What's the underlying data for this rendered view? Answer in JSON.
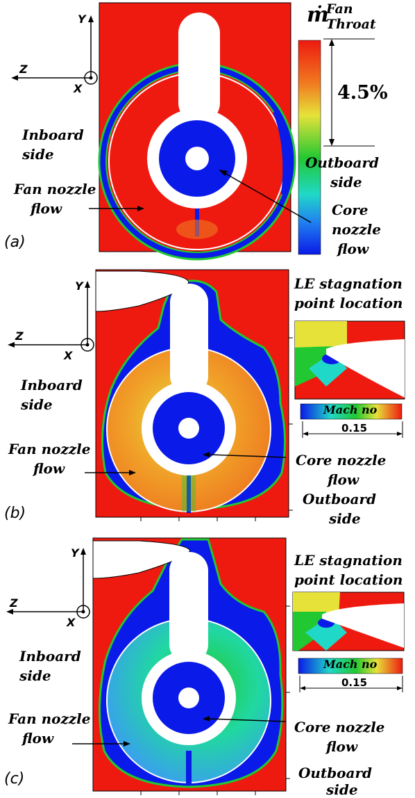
{
  "panels": [
    {
      "tag": "(a)",
      "axes": {
        "y": "Y",
        "z": "Z",
        "x": "X"
      },
      "inboard": [
        "Inboard",
        "side"
      ],
      "fan": [
        "Fan nozzle",
        "flow"
      ],
      "core": [
        "Core",
        "nozzle",
        "flow"
      ],
      "outboard": [
        "Outboard",
        "side"
      ]
    },
    {
      "tag": "(b)",
      "axes": {
        "y": "Y",
        "z": "Z",
        "x": "X"
      },
      "inboard": [
        "Inboard",
        "side"
      ],
      "fan": [
        "Fan nozzle",
        "flow"
      ],
      "core": [
        "Core  nozzle",
        "flow"
      ],
      "outboard": [
        "Outboard",
        "side"
      ],
      "le_label": [
        "LE stagnation",
        "point location"
      ],
      "mach_label": "Mach no",
      "mach_value": "0.15"
    },
    {
      "tag": "(c)",
      "axes": {
        "y": "Y",
        "z": "Z",
        "x": "X"
      },
      "inboard": [
        "Inboard",
        "side"
      ],
      "fan": [
        "Fan nozzle",
        "flow"
      ],
      "core": [
        "Core  nozzle",
        "flow"
      ],
      "outboard": [
        "Outboard",
        "side"
      ],
      "le_label": [
        "LE stagnation",
        "point location"
      ],
      "mach_label": "Mach no",
      "mach_value": "0.15"
    }
  ],
  "legend": {
    "title_base": "ṁ",
    "title_sup": "Fan",
    "title_sub": "Throat",
    "range_label": "4.5%"
  },
  "colors": {
    "red": "#ee1a10",
    "blue": "#0a1ae8",
    "green": "#22c832",
    "yellow": "#e6e23a",
    "orange": "#ee7a20"
  }
}
